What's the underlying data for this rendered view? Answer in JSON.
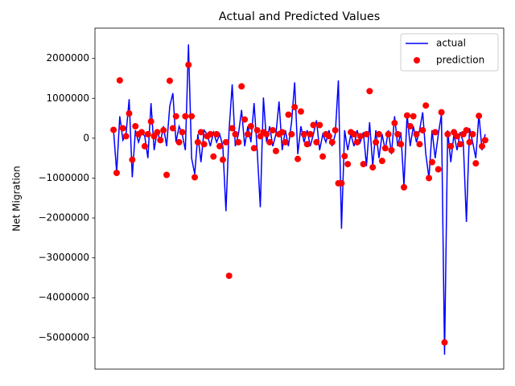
{
  "chart_data": {
    "type": "line",
    "title": "Actual and Predicted Values",
    "y_label": "Net Migration",
    "legend": "upper right",
    "grid": false,
    "xlim": [
      -5.95,
      124.95
    ],
    "ylim": [
      -5790000,
      2760000
    ],
    "yticks": [
      {
        "value": -5000000,
        "label": "−5000000"
      },
      {
        "value": -4000000,
        "label": "−4000000"
      },
      {
        "value": -3000000,
        "label": "−3000000"
      },
      {
        "value": -2000000,
        "label": "−2000000"
      },
      {
        "value": -1000000,
        "label": "−1000000"
      },
      0,
      1000000,
      2000000
    ],
    "x": [
      0,
      1,
      2,
      3,
      4,
      5,
      6,
      7,
      8,
      9,
      10,
      11,
      12,
      13,
      14,
      15,
      16,
      17,
      18,
      19,
      20,
      21,
      22,
      23,
      24,
      25,
      26,
      27,
      28,
      29,
      30,
      31,
      32,
      33,
      34,
      35,
      36,
      37,
      38,
      39,
      40,
      41,
      42,
      43,
      44,
      45,
      46,
      47,
      48,
      49,
      50,
      51,
      52,
      53,
      54,
      55,
      56,
      57,
      58,
      59,
      60,
      61,
      62,
      63,
      64,
      65,
      66,
      67,
      68,
      69,
      70,
      71,
      72,
      73,
      74,
      75,
      76,
      77,
      78,
      79,
      80,
      81,
      82,
      83,
      84,
      85,
      86,
      87,
      88,
      89,
      90,
      91,
      92,
      93,
      94,
      95,
      96,
      97,
      98,
      99,
      100,
      101,
      102,
      103,
      104,
      105,
      106,
      107,
      108,
      109,
      110,
      111,
      112,
      113,
      114,
      115,
      116,
      117,
      118,
      119
    ],
    "series": [
      {
        "name": "actual",
        "mode": "line",
        "color": "#0000ff",
        "values": [
          200000,
          -850000,
          550000,
          -50000,
          100000,
          980000,
          -980000,
          200000,
          -100000,
          150000,
          50000,
          -500000,
          880000,
          -300000,
          200000,
          -100000,
          300000,
          -200000,
          800000,
          1130000,
          -100000,
          300000,
          100000,
          -300000,
          2350000,
          -500000,
          -900000,
          100000,
          -600000,
          200000,
          100000,
          -200000,
          150000,
          -100000,
          100000,
          -200000,
          -1830000,
          200000,
          1350000,
          -200000,
          100000,
          710000,
          -200000,
          300000,
          -100000,
          880000,
          -300000,
          -1730000,
          1020000,
          -100000,
          300000,
          -200000,
          100000,
          920000,
          -300000,
          200000,
          -200000,
          400000,
          1400000,
          -400000,
          300000,
          -100000,
          200000,
          -200000,
          100000,
          450000,
          -300000,
          100000,
          -100000,
          200000,
          -200000,
          100000,
          1450000,
          -2270000,
          200000,
          -300000,
          100000,
          -200000,
          200000,
          -100000,
          150000,
          -700000,
          400000,
          -700000,
          200000,
          -500000,
          100000,
          -300000,
          200000,
          -400000,
          550000,
          -200000,
          150000,
          -1200000,
          600000,
          -200000,
          300000,
          -100000,
          200000,
          650000,
          -400000,
          -1000000,
          200000,
          -500000,
          100000,
          600000,
          -5430000,
          200000,
          -600000,
          100000,
          -300000,
          150000,
          -100000,
          -2100000,
          250000,
          -100000,
          -500000,
          600000,
          -300000,
          100000
        ]
      },
      {
        "name": "prediction",
        "mode": "markers",
        "color": "#ff0000",
        "values": [
          210000,
          -870000,
          1450000,
          250000,
          50000,
          620000,
          -540000,
          300000,
          100000,
          150000,
          -200000,
          100000,
          420000,
          50000,
          150000,
          -50000,
          200000,
          -920000,
          1440000,
          250000,
          550000,
          -100000,
          150000,
          550000,
          1840000,
          550000,
          -980000,
          -100000,
          150000,
          -150000,
          50000,
          100000,
          -460000,
          100000,
          -200000,
          -540000,
          -100000,
          -3450000,
          250000,
          100000,
          -100000,
          1300000,
          470000,
          100000,
          300000,
          -250000,
          200000,
          50000,
          150000,
          100000,
          -100000,
          200000,
          -320000,
          100000,
          150000,
          -100000,
          590000,
          100000,
          780000,
          -520000,
          670000,
          100000,
          -150000,
          100000,
          330000,
          -100000,
          330000,
          -460000,
          100000,
          50000,
          -100000,
          200000,
          -1130000,
          -1130000,
          -450000,
          -650000,
          150000,
          100000,
          -100000,
          50000,
          -650000,
          100000,
          1180000,
          -730000,
          -100000,
          100000,
          -570000,
          -250000,
          100000,
          -300000,
          380000,
          100000,
          -150000,
          -1230000,
          570000,
          300000,
          550000,
          100000,
          -150000,
          200000,
          820000,
          -1000000,
          -600000,
          150000,
          -780000,
          650000,
          -5120000,
          100000,
          -200000,
          150000,
          50000,
          -150000,
          100000,
          200000,
          -100000,
          100000,
          -630000,
          560000,
          -200000,
          -50000
        ]
      }
    ]
  }
}
